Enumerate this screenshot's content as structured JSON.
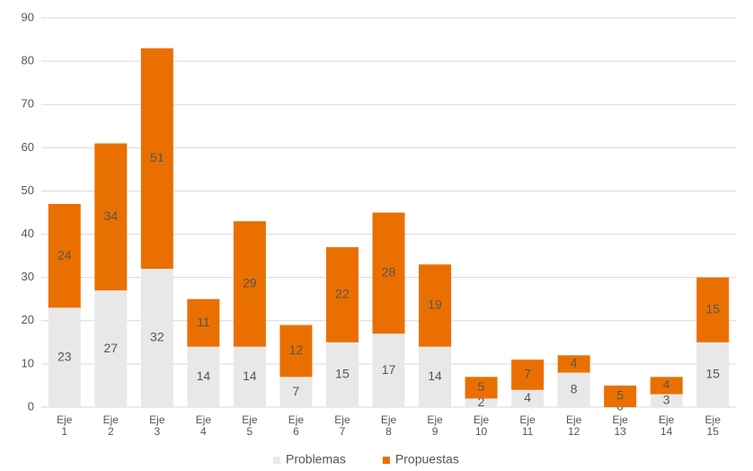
{
  "chart_data": {
    "type": "stacked_bar",
    "categories": [
      "Eje 1",
      "Eje 2",
      "Eje 3",
      "Eje 4",
      "Eje 5",
      "Eje 6",
      "Eje 7",
      "Eje 8",
      "Eje 9",
      "Eje 10",
      "Eje 11",
      "Eje 12",
      "Eje 13",
      "Eje 14",
      "Eje 15"
    ],
    "series": [
      {
        "name": "Problemas",
        "color": "#e8e8e8",
        "values": [
          23,
          27,
          32,
          14,
          14,
          7,
          15,
          17,
          14,
          2,
          4,
          8,
          0,
          3,
          15
        ]
      },
      {
        "name": "Propuestas",
        "color": "#e97000",
        "values": [
          24,
          34,
          51,
          11,
          29,
          12,
          22,
          28,
          19,
          5,
          7,
          4,
          5,
          4,
          15
        ]
      }
    ],
    "ylim": [
      0,
      90
    ],
    "yticks": [
      0,
      10,
      20,
      30,
      40,
      50,
      60,
      70,
      80,
      90
    ],
    "grid": true,
    "legend": "bottom"
  }
}
